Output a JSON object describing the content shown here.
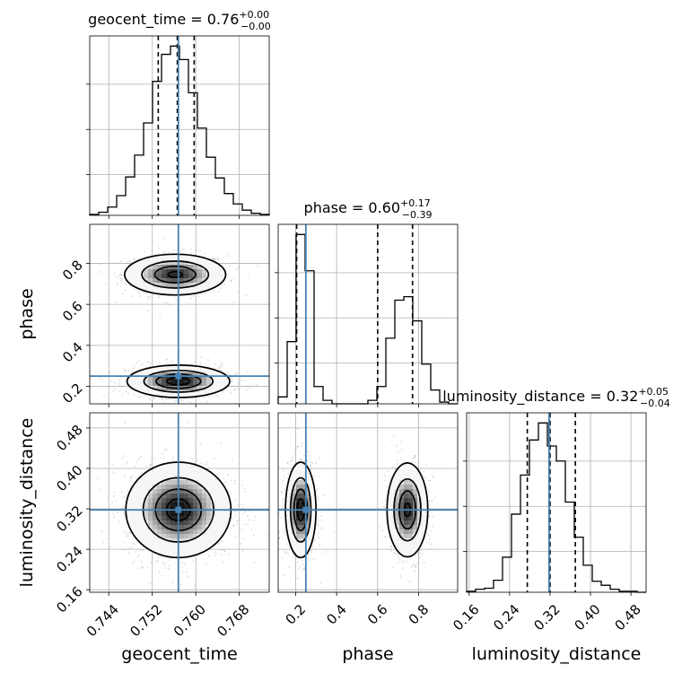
{
  "chart_data": {
    "type": "corner",
    "parameters": [
      "geocent_time",
      "phase",
      "luminosity_distance"
    ],
    "axis_labels": {
      "geocent_time": "geocent_time",
      "phase": "phase",
      "luminosity_distance": "luminosity_distance"
    },
    "titles": [
      {
        "param": "geocent_time",
        "label": "geocent_time = ",
        "median": "0.76",
        "plus": "+0.00",
        "minus": "−0.00"
      },
      {
        "param": "phase",
        "label": "phase = ",
        "median": "0.60",
        "plus": "+0.17",
        "minus": "−0.39"
      },
      {
        "param": "luminosity_distance",
        "label": "luminosity_distance = ",
        "median": "0.32",
        "plus": "+0.05",
        "minus": "−0.04"
      }
    ],
    "ranges": {
      "geocent_time": [
        0.7405,
        0.7735
      ],
      "phase": [
        0.115,
        0.99
      ],
      "luminosity_distance": [
        0.155,
        0.51
      ]
    },
    "ticks": {
      "geocent_time": [
        "0.744",
        "0.752",
        "0.760",
        "0.768"
      ],
      "phase": [
        "0.2",
        "0.4",
        "0.6",
        "0.8"
      ],
      "luminosity_distance": [
        "0.16",
        "0.24",
        "0.32",
        "0.40",
        "0.48"
      ]
    },
    "truths": {
      "geocent_time": 0.7568,
      "phase": 0.25,
      "luminosity_distance": 0.318
    },
    "quantiles": {
      "geocent_time": [
        0.7531,
        0.7566,
        0.7597
      ],
      "phase": [
        0.205,
        0.6,
        0.77
      ],
      "luminosity_distance": [
        0.275,
        0.32,
        0.37
      ]
    },
    "histograms": {
      "geocent_time": {
        "edges": [
          0.7405,
          0.74215,
          0.7438,
          0.74545,
          0.7471,
          0.74875,
          0.7504,
          0.75205,
          0.7537,
          0.75535,
          0.757,
          0.75865,
          0.7603,
          0.76195,
          0.7636,
          0.76525,
          0.7669,
          0.76855,
          0.7702,
          0.77185,
          0.7735
        ],
        "counts": [
          1,
          3,
          8,
          19,
          37,
          58,
          89,
          129,
          155,
          163,
          150,
          118,
          84,
          56,
          36,
          21,
          11,
          5,
          2,
          1
        ]
      },
      "phase": {
        "edges": [
          0.115,
          0.15875,
          0.2025,
          0.24625,
          0.29,
          0.33375,
          0.3775,
          0.42125,
          0.465,
          0.50875,
          0.5525,
          0.59625,
          0.64,
          0.68375,
          0.7275,
          0.77125,
          0.815,
          0.85875,
          0.9025,
          0.94625,
          0.99
        ],
        "counts": [
          4,
          36,
          98,
          77,
          10,
          2,
          0,
          0,
          0,
          0,
          2,
          10,
          38,
          60,
          62,
          48,
          23,
          8,
          1,
          0
        ]
      },
      "luminosity_distance": {
        "edges": [
          0.155,
          0.17275,
          0.1905,
          0.20825,
          0.226,
          0.24375,
          0.2615,
          0.27925,
          0.297,
          0.31475,
          0.3325,
          0.35025,
          0.368,
          0.38575,
          0.4035,
          0.42125,
          0.439,
          0.45675,
          0.4745,
          0.49225,
          0.51
        ],
        "counts": [
          1,
          3,
          4,
          12,
          35,
          78,
          117,
          152,
          169,
          146,
          131,
          90,
          55,
          27,
          11,
          7,
          3,
          1,
          1,
          0
        ]
      }
    },
    "contour_levels_shown": 4,
    "grid": true
  }
}
